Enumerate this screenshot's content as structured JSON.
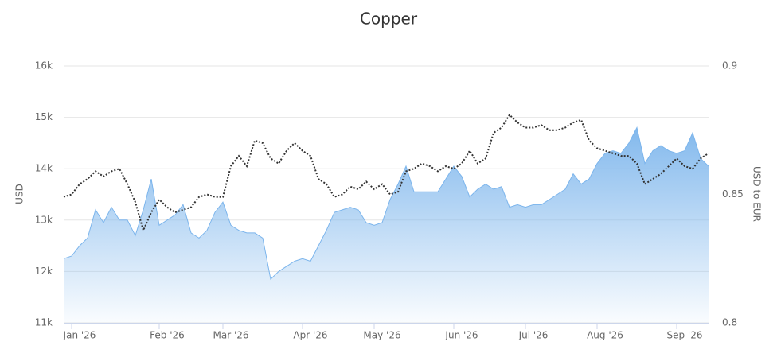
{
  "chart_data": {
    "type": "area-line",
    "title": "Copper",
    "y_label": "USD",
    "y2_label": "USD to EUR",
    "categories": [
      null,
      "Jan '26",
      null,
      null,
      null,
      null,
      null,
      null,
      null,
      null,
      null,
      null,
      "Feb '26",
      null,
      null,
      null,
      null,
      null,
      null,
      null,
      "Mar '26",
      null,
      null,
      null,
      null,
      null,
      null,
      null,
      null,
      null,
      "Apr '26",
      null,
      null,
      null,
      null,
      null,
      null,
      null,
      null,
      "May '26",
      null,
      null,
      null,
      null,
      null,
      null,
      null,
      null,
      null,
      "Jun '26",
      null,
      null,
      null,
      null,
      null,
      null,
      null,
      null,
      "Jul '26",
      null,
      null,
      null,
      null,
      null,
      null,
      null,
      null,
      "Aug '26",
      null,
      null,
      null,
      null,
      null,
      null,
      null,
      null,
      null,
      "Sep '26",
      null,
      null,
      null,
      null
    ],
    "series": [
      {
        "type": "area",
        "color": "#7cb5ec",
        "values": [
          12250,
          12300,
          12500,
          12650,
          13200,
          12950,
          13250,
          13000,
          13000,
          12700,
          13200,
          13800,
          12900,
          13000,
          13100,
          13300,
          12750,
          12650,
          12800,
          13150,
          13350,
          12900,
          12800,
          12750,
          12750,
          12650,
          11850,
          12000,
          12100,
          12200,
          12250,
          12200,
          12500,
          12800,
          13150,
          13200,
          13250,
          13200,
          12950,
          12900,
          12950,
          13400,
          13700,
          14050,
          13550,
          13550,
          13550,
          13550,
          13800,
          14050,
          13850,
          13450,
          13600,
          13700,
          13600,
          13650,
          13250,
          13300,
          13250,
          13300,
          13300,
          13400,
          13500,
          13600,
          13900,
          13700,
          13800,
          14100,
          14300,
          14350,
          14300,
          14500,
          14800,
          14100,
          14350,
          14450,
          14350,
          14300,
          14350,
          14700,
          14200,
          14050
        ]
      },
      {
        "type": "line",
        "axis": "y2",
        "color": "#333333",
        "values": [
          0.849,
          0.85,
          0.854,
          0.856,
          0.859,
          0.857,
          0.859,
          0.86,
          0.854,
          0.847,
          0.836,
          0.843,
          0.848,
          0.845,
          0.843,
          0.844,
          0.845,
          0.849,
          0.85,
          0.849,
          0.849,
          0.861,
          0.865,
          0.861,
          0.871,
          0.87,
          0.864,
          0.862,
          0.867,
          0.87,
          0.867,
          0.865,
          0.856,
          0.854,
          0.849,
          0.85,
          0.853,
          0.852,
          0.855,
          0.852,
          0.854,
          0.85,
          0.851,
          0.859,
          0.86,
          0.862,
          0.861,
          0.859,
          0.861,
          0.86,
          0.862,
          0.867,
          0.862,
          0.864,
          0.874,
          0.876,
          0.881,
          0.878,
          0.876,
          0.876,
          0.877,
          0.875,
          0.875,
          0.876,
          0.878,
          0.879,
          0.871,
          0.868,
          0.867,
          0.866,
          0.865,
          0.865,
          0.862,
          0.854,
          0.856,
          0.858,
          0.861,
          0.864,
          0.861,
          0.86,
          0.864,
          0.866
        ]
      }
    ],
    "ylim": [
      11000,
      16000
    ],
    "yticks": [
      {
        "value": 11000,
        "label": "11k"
      },
      {
        "value": 12000,
        "label": "12k"
      },
      {
        "value": 13000,
        "label": "13k"
      },
      {
        "value": 14000,
        "label": "14k"
      },
      {
        "value": 15000,
        "label": "15k"
      },
      {
        "value": 16000,
        "label": "16k"
      }
    ],
    "y2lim": [
      0.8,
      0.9
    ],
    "y2ticks": [
      0.8,
      0.85,
      0.9
    ],
    "grid": true
  }
}
